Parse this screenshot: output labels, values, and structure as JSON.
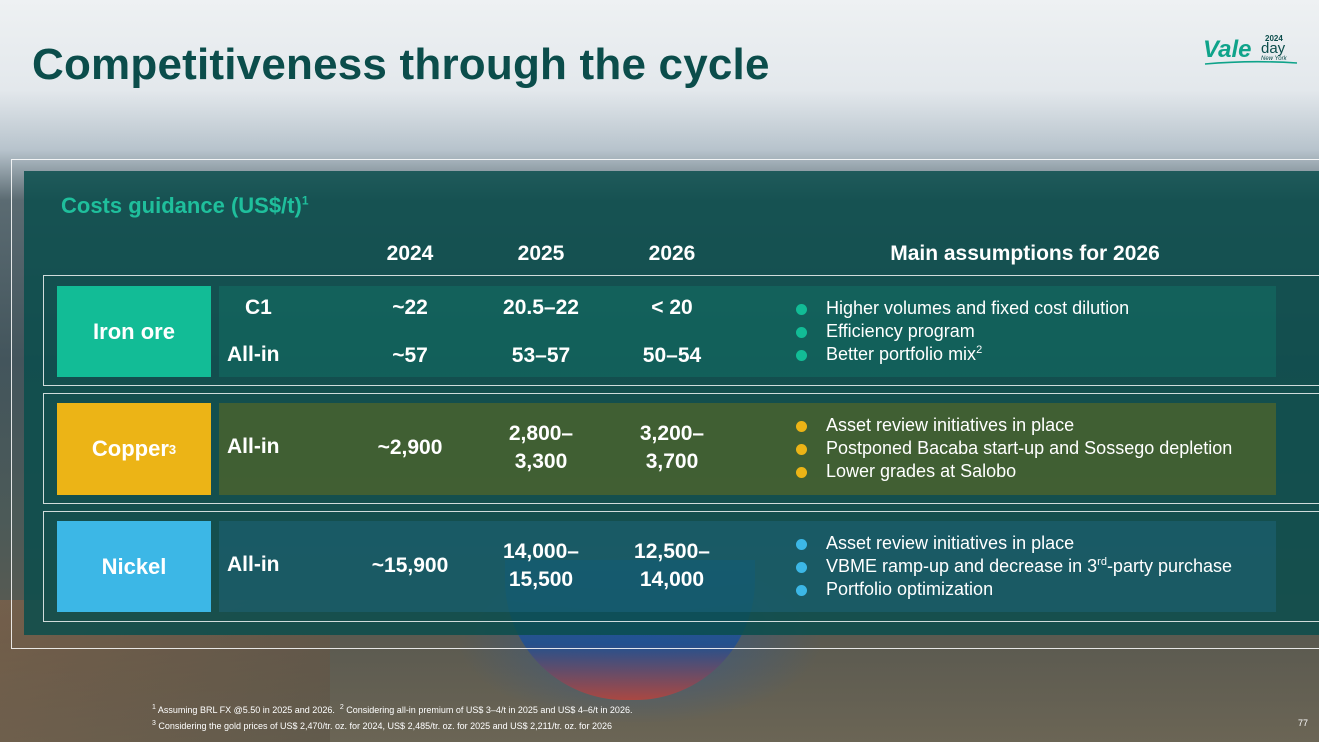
{
  "slide": {
    "title": "Competitiveness through the cycle",
    "page_number": "77"
  },
  "logo": {
    "brand": "Vale",
    "event": "day",
    "year": "2024",
    "city": "New York"
  },
  "costs": {
    "title_bold": "Costs guidance",
    "title_unit": "(US$/t)",
    "title_footnote": "1",
    "years": [
      "2024",
      "2025",
      "2026"
    ],
    "assumptions_header": "Main assumptions for 2026"
  },
  "rows": {
    "iron_ore": {
      "label": "Iron ore",
      "color": "#12bc96",
      "metrics": [
        {
          "name": "C1",
          "v2024": "~22",
          "v2025": "20.5–22",
          "v2026": "< 20"
        },
        {
          "name": "All-in",
          "v2024": "~57",
          "v2025": "53–57",
          "v2026": "50–54"
        }
      ],
      "assumptions": [
        {
          "text": "Higher volumes and fixed cost dilution"
        },
        {
          "text": "Efficiency program"
        },
        {
          "text": "Better portfolio mix",
          "sup": "2"
        }
      ]
    },
    "copper": {
      "label": "Copper",
      "label_sup": "3",
      "color": "#ecb416",
      "metric": "All-in",
      "v2024": "~2,900",
      "v2025_line1": "2,800–",
      "v2025_line2": "3,300",
      "v2026_line1": "3,200–",
      "v2026_line2": "3,700",
      "assumptions": [
        "Asset review initiatives in place",
        "Postponed Bacaba start-up and Sossego depletion",
        "Lower grades at Salobo"
      ]
    },
    "nickel": {
      "label": "Nickel",
      "color": "#3cb7e6",
      "metric": "All-in",
      "v2024": "~15,900",
      "v2025_line1": "14,000–",
      "v2025_line2": "15,500",
      "v2026_line1": "12,500–",
      "v2026_line2": "14,000",
      "assumptions": [
        {
          "pre": "Asset review initiatives in place"
        },
        {
          "pre": "VBME ramp-up and decrease in 3",
          "sup": "rd",
          "post": "-party purchase"
        },
        {
          "pre": "Portfolio optimization"
        }
      ]
    }
  },
  "footnotes": {
    "n1_mark": "1",
    "n1": "Assuming BRL FX @5.50 in 2025 and 2026.",
    "n2_mark": "2",
    "n2": "Considering all-in premium of US$ 3–4/t in 2025 and US$ 4–6/t in 2026.",
    "n3_mark": "3",
    "n3": "Considering the gold prices of US$ 2,470/tr. oz.  for 2024, US$ 2,485/tr. oz. for 2025 and US$ 2,211/tr. oz. for 2026"
  }
}
